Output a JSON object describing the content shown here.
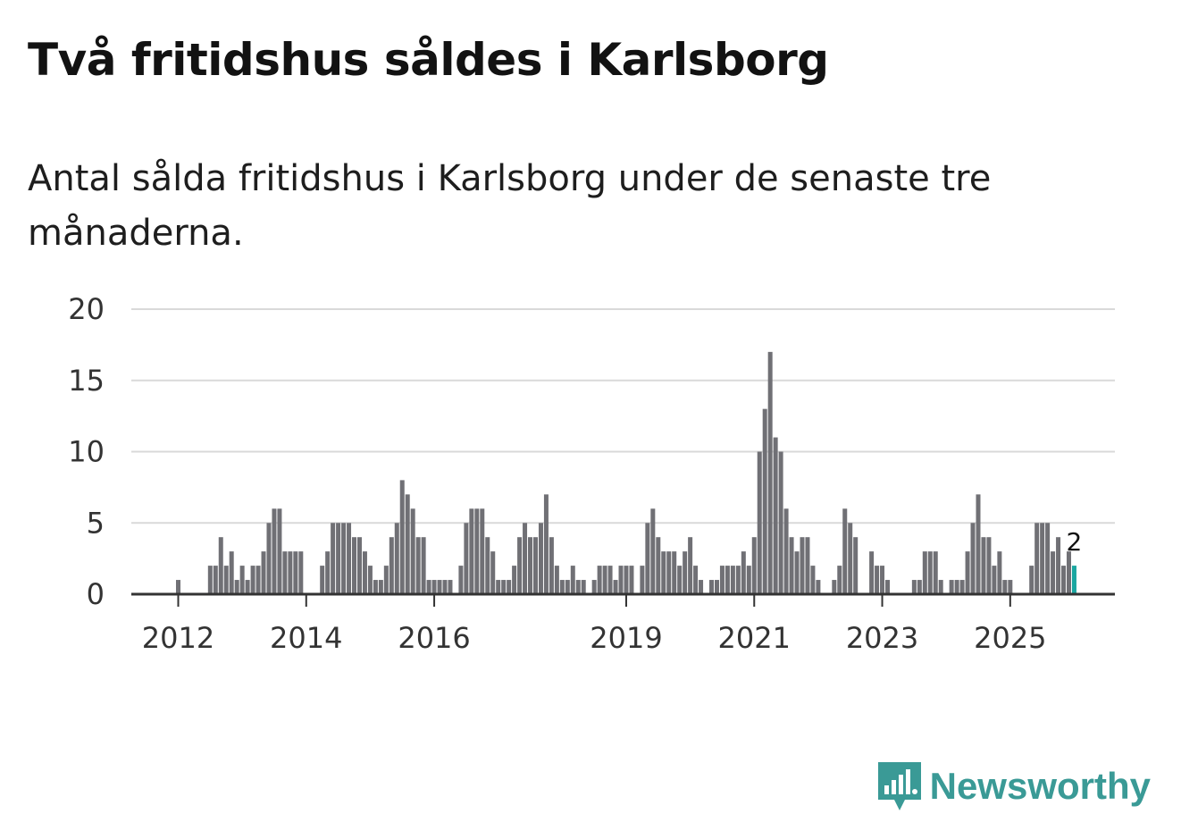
{
  "title": "Två fritidshus såldes i Karlsborg",
  "subtitle": "Antal sålda fritidshus i Karlsborg under de senaste tre månaderna.",
  "brand": {
    "name": "Newsworthy",
    "color": "#3a9a96"
  },
  "colors": {
    "bar": "#707075",
    "highlight": "#1aa6a0",
    "grid": "#d9d9d9",
    "axis": "#333333"
  },
  "chart_data": {
    "type": "bar",
    "title": "Två fritidshus såldes i Karlsborg",
    "xlabel": "",
    "ylabel": "",
    "ylim": [
      0,
      20
    ],
    "yticks": [
      0,
      5,
      10,
      15,
      20
    ],
    "grid": true,
    "xticks": [
      {
        "label": "2012",
        "index": 0
      },
      {
        "label": "2014",
        "index": 24
      },
      {
        "label": "2016",
        "index": 48
      },
      {
        "label": "2019",
        "index": 84
      },
      {
        "label": "2021",
        "index": 108
      },
      {
        "label": "2023",
        "index": 132
      },
      {
        "label": "2025",
        "index": 156
      }
    ],
    "series": [
      {
        "name": "Antal sålda fritidshus",
        "values": [
          1,
          0,
          0,
          0,
          0,
          0,
          2,
          2,
          4,
          2,
          3,
          1,
          2,
          1,
          2,
          2,
          3,
          5,
          6,
          6,
          3,
          3,
          3,
          3,
          0,
          0,
          0,
          2,
          3,
          5,
          5,
          5,
          5,
          4,
          4,
          3,
          2,
          1,
          1,
          2,
          4,
          5,
          8,
          7,
          6,
          4,
          4,
          1,
          1,
          1,
          1,
          1,
          0,
          2,
          5,
          6,
          6,
          6,
          4,
          3,
          1,
          1,
          1,
          2,
          4,
          5,
          4,
          4,
          5,
          7,
          4,
          2,
          1,
          1,
          2,
          1,
          1,
          0,
          1,
          2,
          2,
          2,
          1,
          2,
          2,
          2,
          0,
          2,
          5,
          6,
          4,
          3,
          3,
          3,
          2,
          3,
          4,
          2,
          1,
          0,
          1,
          1,
          2,
          2,
          2,
          2,
          3,
          2,
          4,
          10,
          13,
          17,
          11,
          10,
          6,
          4,
          3,
          4,
          4,
          2,
          1,
          0,
          0,
          1,
          2,
          6,
          5,
          4,
          0,
          0,
          3,
          2,
          2,
          1,
          0,
          0,
          0,
          0,
          1,
          1,
          3,
          3,
          3,
          1,
          0,
          1,
          1,
          1,
          3,
          5,
          7,
          4,
          4,
          2,
          3,
          1,
          1,
          0,
          0,
          0,
          2,
          5,
          5,
          5,
          3,
          4,
          2,
          3,
          2
        ]
      }
    ],
    "highlight": {
      "index": 168,
      "label": "2"
    }
  }
}
